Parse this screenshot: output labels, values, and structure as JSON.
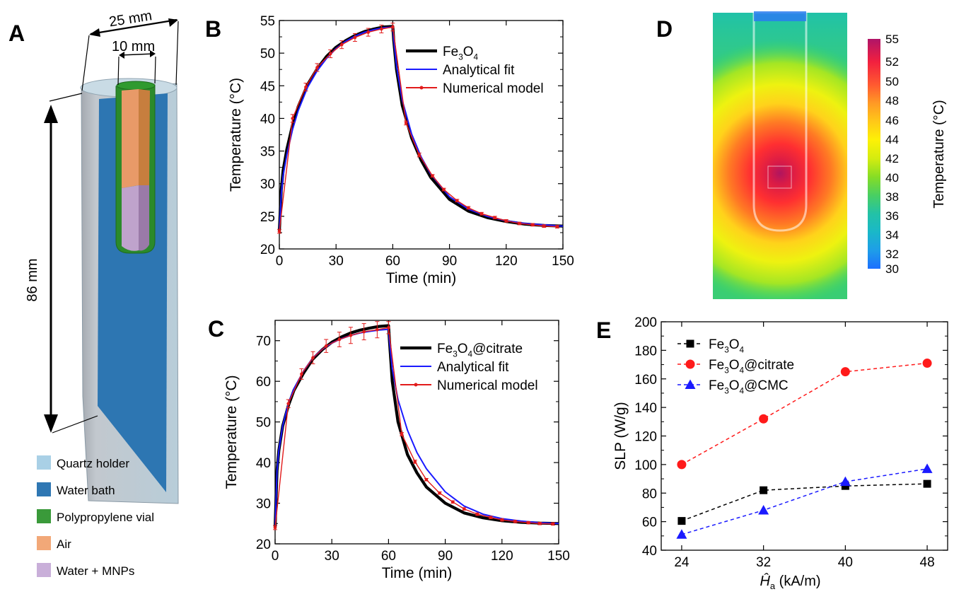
{
  "panels": {
    "A": {
      "letter": "A",
      "dims": {
        "width_outer": "25 mm",
        "width_inner": "10 mm",
        "height": "86 mm"
      },
      "legend": [
        {
          "label": "Quartz holder",
          "color": "#a9d0e6"
        },
        {
          "label": "Water bath",
          "color": "#2f77b3"
        },
        {
          "label": "Polypropylene vial",
          "color": "#3a9a3a"
        },
        {
          "label": "Air",
          "color": "#f2a878"
        },
        {
          "label": "Water + MNPs",
          "color": "#c9afd9"
        }
      ]
    },
    "D": {
      "letter": "D",
      "colorbar": {
        "label": "Temperature (°C)",
        "ticks": [
          "55",
          "52",
          "50",
          "48",
          "46",
          "44",
          "42",
          "40",
          "38",
          "36",
          "34",
          "32",
          "30"
        ]
      }
    }
  },
  "chart_data": [
    {
      "id": "B",
      "letter": "B",
      "type": "line",
      "xlabel": "Time (min)",
      "ylabel": "Temperature (°C)",
      "xlim": [
        0,
        150
      ],
      "ylim": [
        20,
        55
      ],
      "xticks": [
        0,
        30,
        60,
        90,
        120,
        150
      ],
      "yticks": [
        20,
        25,
        30,
        35,
        40,
        45,
        50,
        55
      ],
      "legend": [
        "Fe3O4",
        "Analytical fit",
        "Numerical model"
      ],
      "series": [
        {
          "name": "Fe3O4",
          "color": "#000000",
          "x": [
            0,
            1,
            2,
            4,
            7,
            10,
            15,
            20,
            25,
            30,
            35,
            40,
            45,
            50,
            55,
            60,
            60.5,
            62,
            65,
            70,
            75,
            80,
            90,
            100,
            110,
            120,
            130,
            140,
            150
          ],
          "y": [
            22.7,
            29.0,
            32.0,
            35.3,
            39.0,
            41.8,
            45.2,
            47.6,
            49.5,
            50.9,
            51.9,
            52.7,
            53.3,
            53.7,
            54.0,
            54.1,
            52.0,
            47.5,
            42.0,
            37.0,
            33.6,
            31.0,
            27.6,
            25.8,
            24.8,
            24.2,
            23.8,
            23.6,
            23.5
          ]
        },
        {
          "name": "Analytical fit",
          "color": "#1a1aff",
          "x": [
            0,
            1,
            2,
            4,
            7,
            10,
            15,
            20,
            25,
            30,
            35,
            40,
            45,
            50,
            55,
            60,
            60.5,
            62,
            65,
            70,
            75,
            80,
            90,
            100,
            110,
            120,
            130,
            140,
            150
          ],
          "y": [
            22.7,
            28.3,
            31.2,
            34.5,
            38.3,
            41.2,
            44.8,
            47.3,
            49.2,
            50.7,
            51.8,
            52.6,
            53.2,
            53.6,
            53.9,
            54.0,
            52.2,
            48.0,
            42.8,
            37.6,
            34.1,
            31.5,
            28.0,
            26.1,
            25.0,
            24.3,
            23.9,
            23.7,
            23.5
          ]
        },
        {
          "name": "Numerical model",
          "color": "#e21b1b",
          "x": [
            0,
            7,
            14,
            20,
            27,
            33,
            40,
            47,
            54,
            60,
            67,
            74,
            81,
            87,
            94,
            100,
            107,
            114,
            120,
            127,
            134,
            140,
            147
          ],
          "y": [
            22.7,
            40.0,
            44.8,
            47.8,
            49.9,
            51.3,
            52.4,
            53.2,
            53.7,
            54.0,
            39.3,
            34.4,
            31.2,
            29.1,
            27.4,
            26.3,
            25.4,
            24.8,
            24.3,
            23.9,
            23.7,
            23.5,
            23.4
          ],
          "err": [
            0.3,
            0.6,
            0.6,
            0.6,
            0.6,
            0.6,
            0.6,
            0.6,
            0.6,
            0.6,
            0.3,
            0.3,
            0.2,
            0.2,
            0.2,
            0.2,
            0.2,
            0.2,
            0.2,
            0.2,
            0.2,
            0.2,
            0.2
          ]
        }
      ]
    },
    {
      "id": "C",
      "letter": "C",
      "type": "line",
      "xlabel": "Time (min)",
      "ylabel": "Temperature (°C)",
      "xlim": [
        0,
        150
      ],
      "ylim": [
        20,
        75
      ],
      "xticks": [
        0,
        30,
        60,
        90,
        120,
        150
      ],
      "yticks": [
        20,
        30,
        40,
        50,
        60,
        70
      ],
      "legend": [
        "Fe3O4@citrate",
        "Analytical fit",
        "Numerical model"
      ],
      "series": [
        {
          "name": "Fe3O4@citrate",
          "color": "#000000",
          "x": [
            0,
            1,
            2,
            4,
            7,
            10,
            15,
            20,
            25,
            30,
            35,
            40,
            45,
            50,
            55,
            60,
            60.5,
            62,
            65,
            70,
            75,
            80,
            90,
            100,
            110,
            120,
            130,
            140,
            150
          ],
          "y": [
            24.0,
            38.0,
            43.0,
            49.0,
            54.0,
            57.8,
            62.0,
            65.5,
            67.8,
            69.6,
            70.9,
            71.9,
            72.6,
            73.1,
            73.5,
            73.7,
            70.0,
            60.0,
            50.0,
            42.0,
            37.5,
            34.0,
            30.0,
            27.6,
            26.4,
            25.7,
            25.3,
            25.1,
            25.0
          ]
        },
        {
          "name": "Analytical fit",
          "color": "#1a1aff",
          "x": [
            0,
            1,
            2,
            4,
            7,
            10,
            15,
            20,
            25,
            30,
            35,
            40,
            45,
            50,
            55,
            60,
            60.5,
            62,
            65,
            70,
            75,
            80,
            90,
            100,
            110,
            120,
            130,
            140,
            150
          ],
          "y": [
            24.0,
            38.0,
            43.0,
            49.0,
            54.5,
            58.2,
            62.5,
            65.8,
            67.9,
            69.4,
            70.5,
            71.3,
            71.9,
            72.3,
            72.6,
            72.8,
            70.0,
            63.0,
            55.5,
            48.0,
            42.5,
            38.5,
            32.8,
            29.3,
            27.3,
            26.2,
            25.6,
            25.2,
            25.0
          ]
        },
        {
          "name": "Numerical model",
          "color": "#e21b1b",
          "x": [
            0,
            7,
            14,
            20,
            27,
            34,
            40,
            47,
            54,
            60,
            67,
            74,
            80,
            87,
            94,
            100,
            107,
            114,
            120,
            127,
            134,
            140,
            147
          ],
          "y": [
            24.0,
            54.5,
            61.8,
            65.8,
            68.7,
            70.3,
            71.3,
            72.2,
            72.7,
            73.2,
            47.0,
            40.2,
            35.8,
            32.5,
            30.3,
            28.6,
            27.3,
            26.5,
            25.9,
            25.5,
            25.2,
            25.0,
            24.9
          ],
          "err": [
            0.5,
            1.0,
            1.3,
            1.5,
            1.6,
            1.8,
            2.0,
            2.0,
            2.0,
            1.5,
            0.4,
            0.4,
            0.3,
            0.3,
            0.3,
            0.3,
            0.3,
            0.3,
            0.3,
            0.3,
            0.3,
            0.3,
            0.3
          ]
        }
      ]
    },
    {
      "id": "E",
      "letter": "E",
      "type": "line",
      "xlabel": "Ĥa (kA/m)",
      "ylabel": "SLP (W/g)",
      "xlim": [
        22,
        50
      ],
      "ylim": [
        40,
        200
      ],
      "xticks": [
        24,
        32,
        40,
        48
      ],
      "yticks": [
        40,
        60,
        80,
        100,
        120,
        140,
        160,
        180,
        200
      ],
      "legend": [
        "Fe3O4",
        "Fe3O4@citrate",
        "Fe3O4@CMC"
      ],
      "series": [
        {
          "name": "Fe3O4",
          "color": "#000000",
          "marker": "square",
          "x": [
            24,
            32,
            40,
            48
          ],
          "y": [
            60.5,
            82,
            85,
            86.5
          ]
        },
        {
          "name": "Fe3O4@citrate",
          "color": "#ff1a1a",
          "marker": "circle",
          "x": [
            24,
            32,
            40,
            48
          ],
          "y": [
            100,
            132,
            165,
            171
          ]
        },
        {
          "name": "Fe3O4@CMC",
          "color": "#1a1aff",
          "marker": "triangle",
          "x": [
            24,
            32,
            40,
            48
          ],
          "y": [
            51,
            68,
            88,
            97
          ]
        }
      ]
    }
  ]
}
